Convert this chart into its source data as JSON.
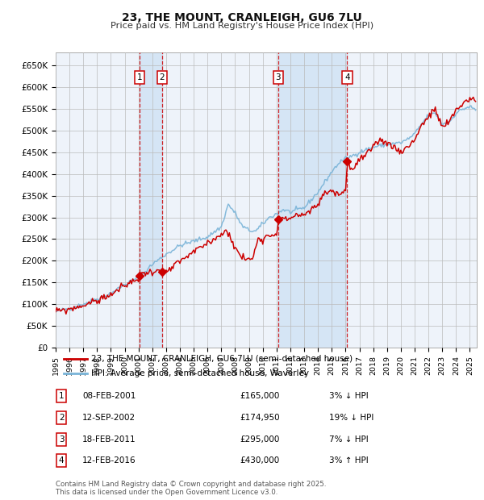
{
  "title": "23, THE MOUNT, CRANLEIGH, GU6 7LU",
  "subtitle": "Price paid vs. HM Land Registry's House Price Index (HPI)",
  "ylim": [
    0,
    680000
  ],
  "yticks": [
    0,
    50000,
    100000,
    150000,
    200000,
    250000,
    300000,
    350000,
    400000,
    450000,
    500000,
    550000,
    600000,
    650000
  ],
  "ytick_labels": [
    "£0",
    "£50K",
    "£100K",
    "£150K",
    "£200K",
    "£250K",
    "£300K",
    "£350K",
    "£400K",
    "£450K",
    "£500K",
    "£550K",
    "£600K",
    "£650K"
  ],
  "hpi_color": "#7ab4d8",
  "price_color": "#cc0000",
  "background_color": "#ffffff",
  "plot_bg_color": "#eef3fa",
  "grid_color": "#bbbbbb",
  "shade_color": "#d5e5f5",
  "transaction_dates": [
    2001.08,
    2002.71,
    2011.12,
    2016.12
  ],
  "transaction_prices": [
    165000,
    174950,
    295000,
    430000
  ],
  "transaction_labels": [
    "1",
    "2",
    "3",
    "4"
  ],
  "vline_shade_ranges": [
    [
      2001.08,
      2002.71
    ],
    [
      2011.12,
      2016.12
    ]
  ],
  "legend_line1": "23, THE MOUNT, CRANLEIGH, GU6 7LU (semi-detached house)",
  "legend_line2": "HPI: Average price, semi-detached house, Waverley",
  "table_data": [
    [
      "1",
      "08-FEB-2001",
      "£165,000",
      "3% ↓ HPI"
    ],
    [
      "2",
      "12-SEP-2002",
      "£174,950",
      "19% ↓ HPI"
    ],
    [
      "3",
      "18-FEB-2011",
      "£295,000",
      "7% ↓ HPI"
    ],
    [
      "4",
      "12-FEB-2016",
      "£430,000",
      "3% ↑ HPI"
    ]
  ],
  "footnote": "Contains HM Land Registry data © Crown copyright and database right 2025.\nThis data is licensed under the Open Government Licence v3.0.",
  "xmin": 1995.0,
  "xmax": 2025.5,
  "hpi_anchors": [
    [
      1995.0,
      83000
    ],
    [
      1996.0,
      90000
    ],
    [
      1997.0,
      100000
    ],
    [
      1998.0,
      112000
    ],
    [
      1999.0,
      125000
    ],
    [
      2000.0,
      145000
    ],
    [
      2001.0,
      162000
    ],
    [
      2001.5,
      175000
    ],
    [
      2002.0,
      192000
    ],
    [
      2003.0,
      215000
    ],
    [
      2004.0,
      235000
    ],
    [
      2005.0,
      245000
    ],
    [
      2006.0,
      255000
    ],
    [
      2007.0,
      278000
    ],
    [
      2007.5,
      330000
    ],
    [
      2008.0,
      310000
    ],
    [
      2008.5,
      280000
    ],
    [
      2009.0,
      270000
    ],
    [
      2009.5,
      268000
    ],
    [
      2010.0,
      285000
    ],
    [
      2010.5,
      300000
    ],
    [
      2011.0,
      308000
    ],
    [
      2011.5,
      318000
    ],
    [
      2012.0,
      312000
    ],
    [
      2013.0,
      322000
    ],
    [
      2014.0,
      358000
    ],
    [
      2015.0,
      405000
    ],
    [
      2015.5,
      425000
    ],
    [
      2016.0,
      435000
    ],
    [
      2016.5,
      442000
    ],
    [
      2017.0,
      450000
    ],
    [
      2018.0,
      462000
    ],
    [
      2019.0,
      468000
    ],
    [
      2020.0,
      472000
    ],
    [
      2020.5,
      480000
    ],
    [
      2021.0,
      492000
    ],
    [
      2021.5,
      515000
    ],
    [
      2022.0,
      535000
    ],
    [
      2022.5,
      540000
    ],
    [
      2023.0,
      515000
    ],
    [
      2023.5,
      520000
    ],
    [
      2024.0,
      540000
    ],
    [
      2024.5,
      550000
    ],
    [
      2025.0,
      555000
    ],
    [
      2025.4,
      548000
    ]
  ],
  "red_anchors": [
    [
      1995.0,
      83000
    ],
    [
      1996.0,
      88000
    ],
    [
      1997.0,
      97000
    ],
    [
      1998.0,
      108000
    ],
    [
      1999.0,
      122000
    ],
    [
      2000.0,
      142000
    ],
    [
      2001.0,
      160000
    ],
    [
      2001.08,
      165000
    ],
    [
      2001.5,
      172000
    ],
    [
      2002.0,
      176000
    ],
    [
      2002.71,
      174950
    ],
    [
      2003.0,
      172000
    ],
    [
      2004.0,
      198000
    ],
    [
      2005.0,
      220000
    ],
    [
      2006.0,
      240000
    ],
    [
      2007.0,
      262000
    ],
    [
      2007.5,
      268000
    ],
    [
      2008.0,
      228000
    ],
    [
      2008.5,
      208000
    ],
    [
      2009.0,
      202000
    ],
    [
      2009.3,
      208000
    ],
    [
      2009.7,
      256000
    ],
    [
      2010.0,
      250000
    ],
    [
      2010.5,
      260000
    ],
    [
      2011.0,
      262000
    ],
    [
      2011.12,
      295000
    ],
    [
      2011.5,
      295000
    ],
    [
      2012.0,
      298000
    ],
    [
      2012.5,
      308000
    ],
    [
      2013.0,
      302000
    ],
    [
      2013.5,
      318000
    ],
    [
      2014.0,
      328000
    ],
    [
      2014.5,
      358000
    ],
    [
      2015.0,
      362000
    ],
    [
      2015.5,
      352000
    ],
    [
      2016.0,
      362000
    ],
    [
      2016.12,
      430000
    ],
    [
      2016.5,
      408000
    ],
    [
      2017.0,
      432000
    ],
    [
      2017.5,
      445000
    ],
    [
      2018.0,
      458000
    ],
    [
      2018.5,
      480000
    ],
    [
      2019.0,
      472000
    ],
    [
      2019.5,
      462000
    ],
    [
      2020.0,
      452000
    ],
    [
      2020.5,
      462000
    ],
    [
      2021.0,
      480000
    ],
    [
      2021.5,
      512000
    ],
    [
      2022.0,
      532000
    ],
    [
      2022.5,
      548000
    ],
    [
      2023.0,
      508000
    ],
    [
      2023.5,
      518000
    ],
    [
      2024.0,
      548000
    ],
    [
      2024.5,
      562000
    ],
    [
      2025.0,
      575000
    ],
    [
      2025.4,
      568000
    ]
  ]
}
